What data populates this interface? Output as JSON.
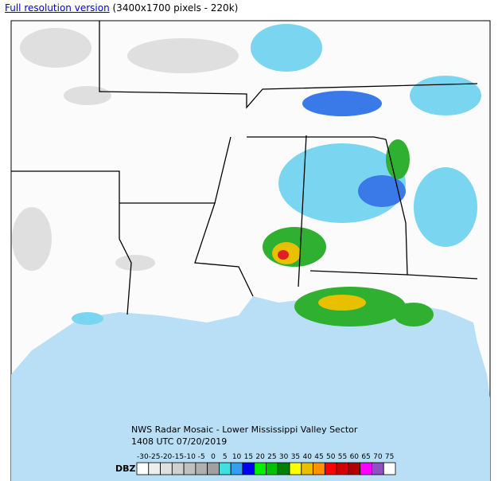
{
  "link": {
    "text": "Full resolution version",
    "note": "(3400x1700 pixels - 220k)"
  },
  "map": {
    "caption": "NWS Radar Mosaic - Lower Mississippi Valley Sector",
    "timestamp": "1408 UTC 07/20/2019"
  },
  "legend": {
    "unit": "DBZ",
    "levels": [
      -30,
      -25,
      -20,
      -15,
      -10,
      -5,
      0,
      5,
      10,
      15,
      20,
      25,
      30,
      35,
      40,
      45,
      50,
      55,
      60,
      65,
      70,
      75
    ],
    "colors": [
      "#ffffff",
      "#eeeeee",
      "#e0e0e0",
      "#d0d0d0",
      "#c0c0c0",
      "#b0b0b0",
      "#a0a0a0",
      "#40e0e0",
      "#30a0f0",
      "#0000f0",
      "#00f000",
      "#00c000",
      "#008000",
      "#ffff00",
      "#e8c000",
      "#ff9000",
      "#ff0000",
      "#d00000",
      "#b00000",
      "#ff00ff",
      "#9050c0",
      "#ffffff"
    ]
  }
}
